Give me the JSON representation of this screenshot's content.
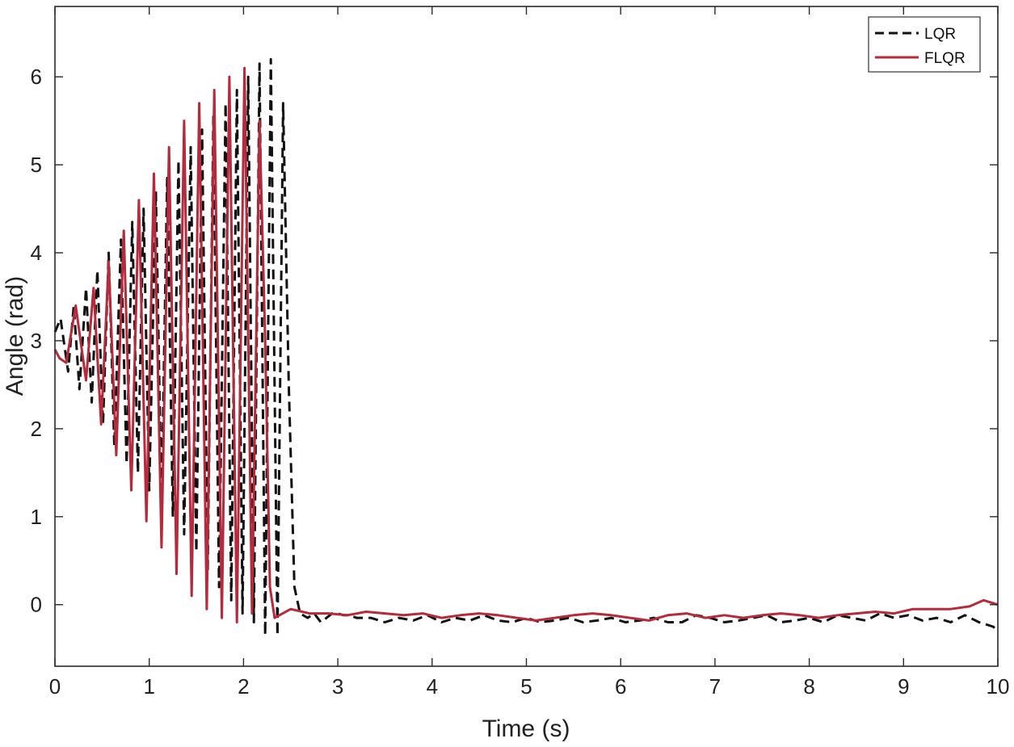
{
  "chart_data": {
    "type": "line",
    "title": "",
    "xlabel": "Time (s)",
    "ylabel": "Angle (rad)",
    "xlim": [
      0,
      10
    ],
    "ylim": [
      -0.7,
      6.8
    ],
    "x_ticks": [
      0,
      1,
      2,
      3,
      4,
      5,
      6,
      7,
      8,
      9,
      10
    ],
    "y_ticks": [
      0,
      1,
      2,
      3,
      4,
      5,
      6
    ],
    "grid": false,
    "legend": "top-right",
    "series": [
      {
        "name": "LQR",
        "color": "#111111",
        "style": "dashed",
        "x": [
          0,
          0.06,
          0.14,
          0.2,
          0.26,
          0.33,
          0.39,
          0.45,
          0.51,
          0.57,
          0.63,
          0.7,
          0.76,
          0.82,
          0.88,
          0.94,
          1.0,
          1.07,
          1.13,
          1.19,
          1.25,
          1.31,
          1.37,
          1.44,
          1.5,
          1.56,
          1.62,
          1.68,
          1.74,
          1.81,
          1.87,
          1.93,
          1.99,
          2.05,
          2.11,
          2.17,
          2.23,
          2.29,
          2.36,
          2.42,
          2.48,
          2.54,
          2.6,
          2.68,
          2.75,
          2.82,
          2.88,
          2.94,
          3.0,
          3.06,
          3.12,
          3.2,
          3.35,
          3.5,
          3.65,
          3.8,
          3.95,
          4.1,
          4.25,
          4.4,
          4.55,
          4.7,
          4.85,
          5.0,
          5.15,
          5.3,
          5.45,
          5.6,
          5.75,
          5.9,
          6.05,
          6.2,
          6.35,
          6.5,
          6.65,
          6.8,
          6.95,
          7.1,
          7.25,
          7.4,
          7.55,
          7.7,
          7.85,
          8.0,
          8.15,
          8.3,
          8.45,
          8.6,
          8.75,
          8.9,
          9.05,
          9.2,
          9.35,
          9.5,
          9.65,
          9.8,
          9.95,
          10.0
        ],
        "y": [
          3.1,
          3.25,
          2.65,
          3.4,
          2.45,
          3.6,
          2.3,
          3.8,
          2.05,
          4.0,
          1.8,
          4.15,
          1.6,
          4.35,
          1.5,
          4.5,
          1.3,
          4.7,
          1.15,
          4.85,
          1.0,
          5.05,
          0.8,
          5.2,
          0.6,
          5.4,
          0.4,
          5.55,
          0.2,
          5.7,
          0.05,
          5.85,
          -0.1,
          6.0,
          -0.2,
          6.15,
          -0.35,
          6.2,
          -0.35,
          5.7,
          2.5,
          0.2,
          -0.1,
          -0.15,
          -0.1,
          -0.2,
          -0.15,
          -0.1,
          -0.1,
          -0.12,
          -0.12,
          -0.15,
          -0.15,
          -0.2,
          -0.15,
          -0.18,
          -0.12,
          -0.2,
          -0.15,
          -0.18,
          -0.12,
          -0.18,
          -0.2,
          -0.15,
          -0.2,
          -0.18,
          -0.15,
          -0.2,
          -0.18,
          -0.15,
          -0.2,
          -0.18,
          -0.15,
          -0.2,
          -0.2,
          -0.12,
          -0.15,
          -0.2,
          -0.18,
          -0.15,
          -0.12,
          -0.2,
          -0.18,
          -0.15,
          -0.2,
          -0.12,
          -0.15,
          -0.18,
          -0.1,
          -0.15,
          -0.12,
          -0.18,
          -0.15,
          -0.2,
          -0.12,
          -0.2,
          -0.25,
          -0.3
        ]
      },
      {
        "name": "FLQR",
        "color": "#b52a3c",
        "style": "solid",
        "x": [
          0,
          0.05,
          0.12,
          0.22,
          0.33,
          0.41,
          0.49,
          0.57,
          0.65,
          0.73,
          0.81,
          0.89,
          0.97,
          1.05,
          1.13,
          1.21,
          1.29,
          1.37,
          1.45,
          1.53,
          1.61,
          1.69,
          1.77,
          1.85,
          1.93,
          2.01,
          2.09,
          2.17,
          2.23,
          2.28,
          2.33,
          2.5,
          2.7,
          2.9,
          3.1,
          3.3,
          3.5,
          3.7,
          3.9,
          4.1,
          4.3,
          4.5,
          4.7,
          4.9,
          5.1,
          5.3,
          5.5,
          5.7,
          5.9,
          6.1,
          6.3,
          6.5,
          6.7,
          6.9,
          7.1,
          7.3,
          7.5,
          7.7,
          7.9,
          8.1,
          8.3,
          8.5,
          8.7,
          8.9,
          9.1,
          9.3,
          9.5,
          9.7,
          9.85,
          10.0
        ],
        "y": [
          2.9,
          2.8,
          2.75,
          3.4,
          2.55,
          3.6,
          2.05,
          3.9,
          1.7,
          4.25,
          1.3,
          4.6,
          0.95,
          4.9,
          0.65,
          5.2,
          0.35,
          5.5,
          0.1,
          5.7,
          -0.05,
          5.85,
          -0.15,
          6.0,
          -0.2,
          6.1,
          -0.1,
          5.5,
          3.0,
          0.2,
          -0.15,
          -0.05,
          -0.1,
          -0.1,
          -0.12,
          -0.08,
          -0.1,
          -0.12,
          -0.1,
          -0.15,
          -0.12,
          -0.1,
          -0.12,
          -0.15,
          -0.18,
          -0.15,
          -0.12,
          -0.1,
          -0.12,
          -0.15,
          -0.18,
          -0.12,
          -0.1,
          -0.15,
          -0.12,
          -0.15,
          -0.12,
          -0.1,
          -0.12,
          -0.15,
          -0.12,
          -0.1,
          -0.08,
          -0.1,
          -0.05,
          -0.05,
          -0.05,
          -0.02,
          0.05,
          0.0
        ]
      }
    ]
  }
}
